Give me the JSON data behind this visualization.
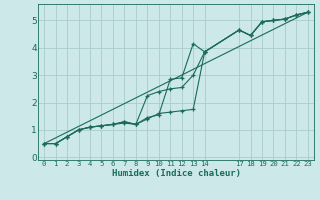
{
  "bg_color": "#cce8e8",
  "grid_color": "#aacccc",
  "line_color": "#1a6b5a",
  "xlabel": "Humidex (Indice chaleur)",
  "xlim": [
    -0.5,
    23.5
  ],
  "ylim": [
    -0.1,
    5.6
  ],
  "xticks": [
    0,
    1,
    2,
    3,
    4,
    5,
    6,
    7,
    8,
    9,
    10,
    11,
    12,
    13,
    14,
    17,
    18,
    19,
    20,
    21,
    22,
    23
  ],
  "yticks": [
    0,
    1,
    2,
    3,
    4,
    5
  ],
  "line1_x": [
    0,
    1,
    2,
    3,
    4,
    5,
    6,
    7,
    8,
    9,
    10,
    11,
    12,
    13,
    14,
    17,
    18,
    19,
    20,
    21,
    22,
    23
  ],
  "line1_y": [
    0.5,
    0.5,
    0.75,
    1.0,
    1.1,
    1.15,
    1.2,
    1.25,
    1.2,
    1.45,
    1.55,
    2.85,
    2.9,
    4.15,
    3.85,
    4.65,
    4.45,
    4.95,
    5.0,
    5.05,
    5.2,
    5.3
  ],
  "line2_x": [
    0,
    1,
    2,
    3,
    4,
    5,
    6,
    7,
    8,
    9,
    10,
    11,
    12,
    13,
    14,
    17,
    18,
    19,
    20,
    21,
    22,
    23
  ],
  "line2_y": [
    0.5,
    0.5,
    0.75,
    1.0,
    1.1,
    1.15,
    1.2,
    1.3,
    1.2,
    2.25,
    2.4,
    2.5,
    2.55,
    3.0,
    3.85,
    4.65,
    4.45,
    4.95,
    5.0,
    5.05,
    5.2,
    5.3
  ],
  "line3_x": [
    0,
    1,
    2,
    3,
    4,
    5,
    6,
    7,
    8,
    9,
    10,
    11,
    12,
    13,
    14,
    17,
    18,
    19,
    20,
    21,
    22,
    23
  ],
  "line3_y": [
    0.5,
    0.5,
    0.75,
    1.0,
    1.1,
    1.15,
    1.2,
    1.3,
    1.2,
    1.4,
    1.6,
    1.65,
    1.7,
    1.75,
    3.85,
    4.65,
    4.45,
    4.95,
    5.0,
    5.05,
    5.2,
    5.3
  ],
  "line4_x": [
    0,
    23
  ],
  "line4_y": [
    0.5,
    5.3
  ]
}
